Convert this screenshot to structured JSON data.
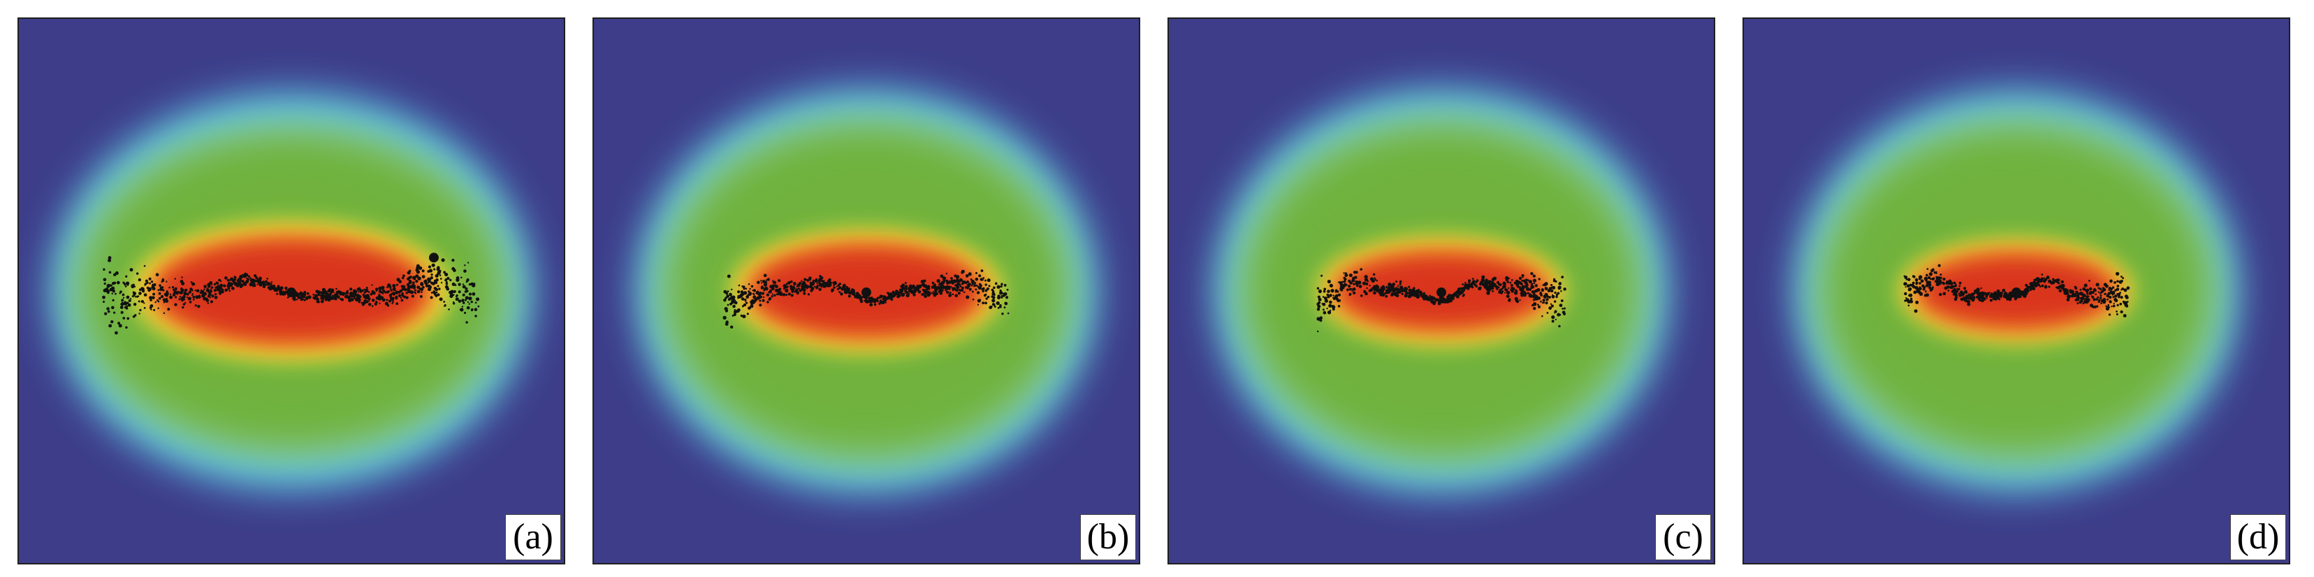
{
  "figure": {
    "panels": [
      {
        "label": "(a)"
      },
      {
        "label": "(b)"
      },
      {
        "label": "(c)"
      },
      {
        "label": "(d)"
      }
    ],
    "colors": {
      "background": "#3d3d8a",
      "halo_cyan": "#5ec8e6",
      "green": "#6fb23c",
      "yellow": "#f2e23a",
      "orange": "#f08a2a",
      "red": "#d9341f",
      "points": "#111111"
    }
  }
}
